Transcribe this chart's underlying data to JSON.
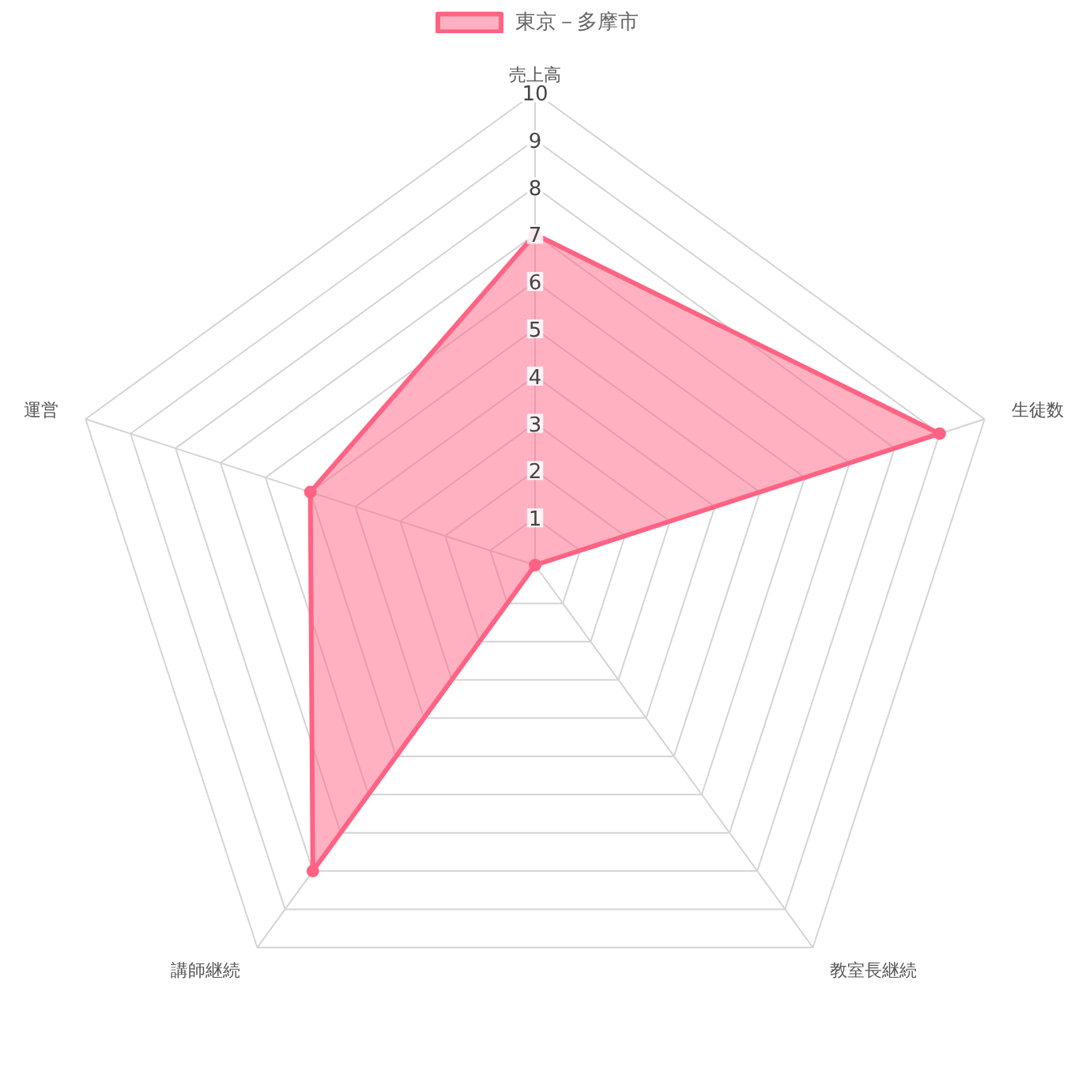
{
  "chart_data": {
    "type": "radar",
    "categories": [
      "売上高",
      "生徒数",
      "教室長継続",
      "講師継続",
      "運営"
    ],
    "series": [
      {
        "name": "東京－多摩市",
        "color": "#ff6384",
        "values": [
          7,
          9,
          0,
          8,
          5
        ]
      }
    ],
    "ylim": [
      0,
      10
    ],
    "yticks": [
      1,
      2,
      3,
      4,
      5,
      6,
      7,
      8,
      9,
      10
    ],
    "grid": true,
    "legend": "top",
    "marker": "circle"
  }
}
